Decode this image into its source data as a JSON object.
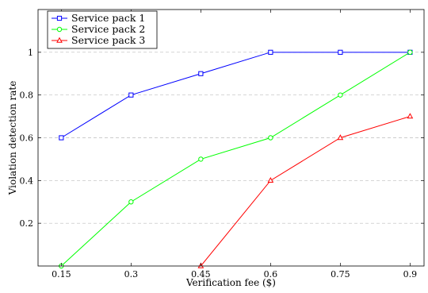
{
  "chart_data": {
    "type": "line",
    "xlabel": "Verification fee ($)",
    "ylabel": "Violation detection rate",
    "x_ticks": [
      "0.15",
      "0.3",
      "0.45",
      "0.6",
      "0.75",
      "0.9"
    ],
    "y_ticks": [
      "0.2",
      "0.4",
      "0.6",
      "0.8",
      "1"
    ],
    "xlim": [
      0.1,
      0.93
    ],
    "ylim": [
      0,
      1.2
    ],
    "grid": "horizontal-dashed",
    "legend_position": "top-left",
    "series": [
      {
        "name": "Service pack 1",
        "color": "#0000ff",
        "marker": "square",
        "x": [
          0.15,
          0.3,
          0.45,
          0.6,
          0.75,
          0.9
        ],
        "y": [
          0.6,
          0.8,
          0.9,
          1.0,
          1.0,
          1.0
        ]
      },
      {
        "name": "Service pack 2",
        "color": "#00ff00",
        "marker": "circle",
        "x": [
          0.15,
          0.3,
          0.45,
          0.6,
          0.75,
          0.9
        ],
        "y": [
          0.0,
          0.3,
          0.5,
          0.6,
          0.8,
          1.0
        ]
      },
      {
        "name": "Service pack 3",
        "color": "#ff0000",
        "marker": "triangle",
        "x": [
          0.45,
          0.6,
          0.75,
          0.9
        ],
        "y": [
          0.0,
          0.4,
          0.6,
          0.7
        ]
      }
    ]
  }
}
